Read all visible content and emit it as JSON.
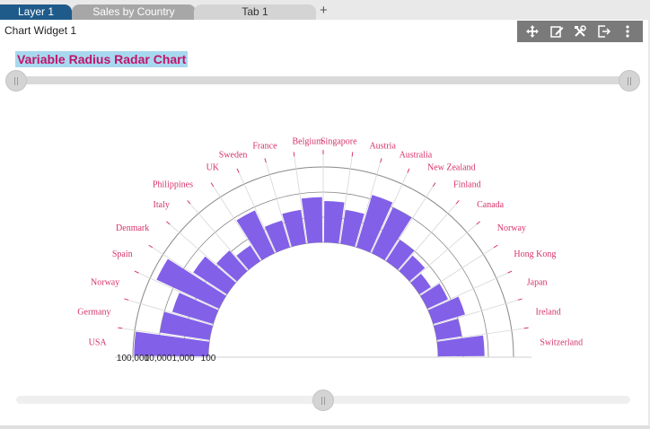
{
  "tabs": [
    {
      "label": "Layer 1"
    },
    {
      "label": "Sales by Country"
    },
    {
      "label": "Tab 1"
    }
  ],
  "add_tab_label": "+",
  "widget": {
    "title": "Chart Widget 1",
    "toolbar_icons": [
      "move-icon",
      "edit-icon",
      "settings-icon",
      "export-icon",
      "more-icon"
    ]
  },
  "chart_data": {
    "type": "bar",
    "subtype": "variable-radius-radar",
    "title": "Variable Radius Radar Chart",
    "radial_scale": "log",
    "axis_tick_labels": [
      "100,000",
      "10,000",
      "1,000",
      "100"
    ],
    "axis_tick_values": [
      100000,
      10000,
      1000,
      100
    ],
    "grid": true,
    "colors": {
      "bar": "#8360e8",
      "category_label": "#d6336c",
      "grid": "#d6d6d6",
      "arc": "#888888"
    },
    "categories": [
      "USA",
      "Germany",
      "Norway",
      "Spain",
      "Denmark",
      "Italy",
      "Philippines",
      "UK",
      "Sweden",
      "France",
      "Belgium",
      "Singapore",
      "Austria",
      "Australia",
      "New Zealand",
      "Finland",
      "Canada",
      "Norway",
      "Hong Kong",
      "Japan",
      "Ireland",
      "Switzerland"
    ],
    "values": [
      90000,
      10000,
      5000,
      55000,
      4000,
      1200,
      550,
      7500,
      1300,
      2300,
      6300,
      4400,
      2300,
      15000,
      10000,
      1000,
      650,
      350,
      800,
      2100,
      1000,
      7000
    ]
  }
}
